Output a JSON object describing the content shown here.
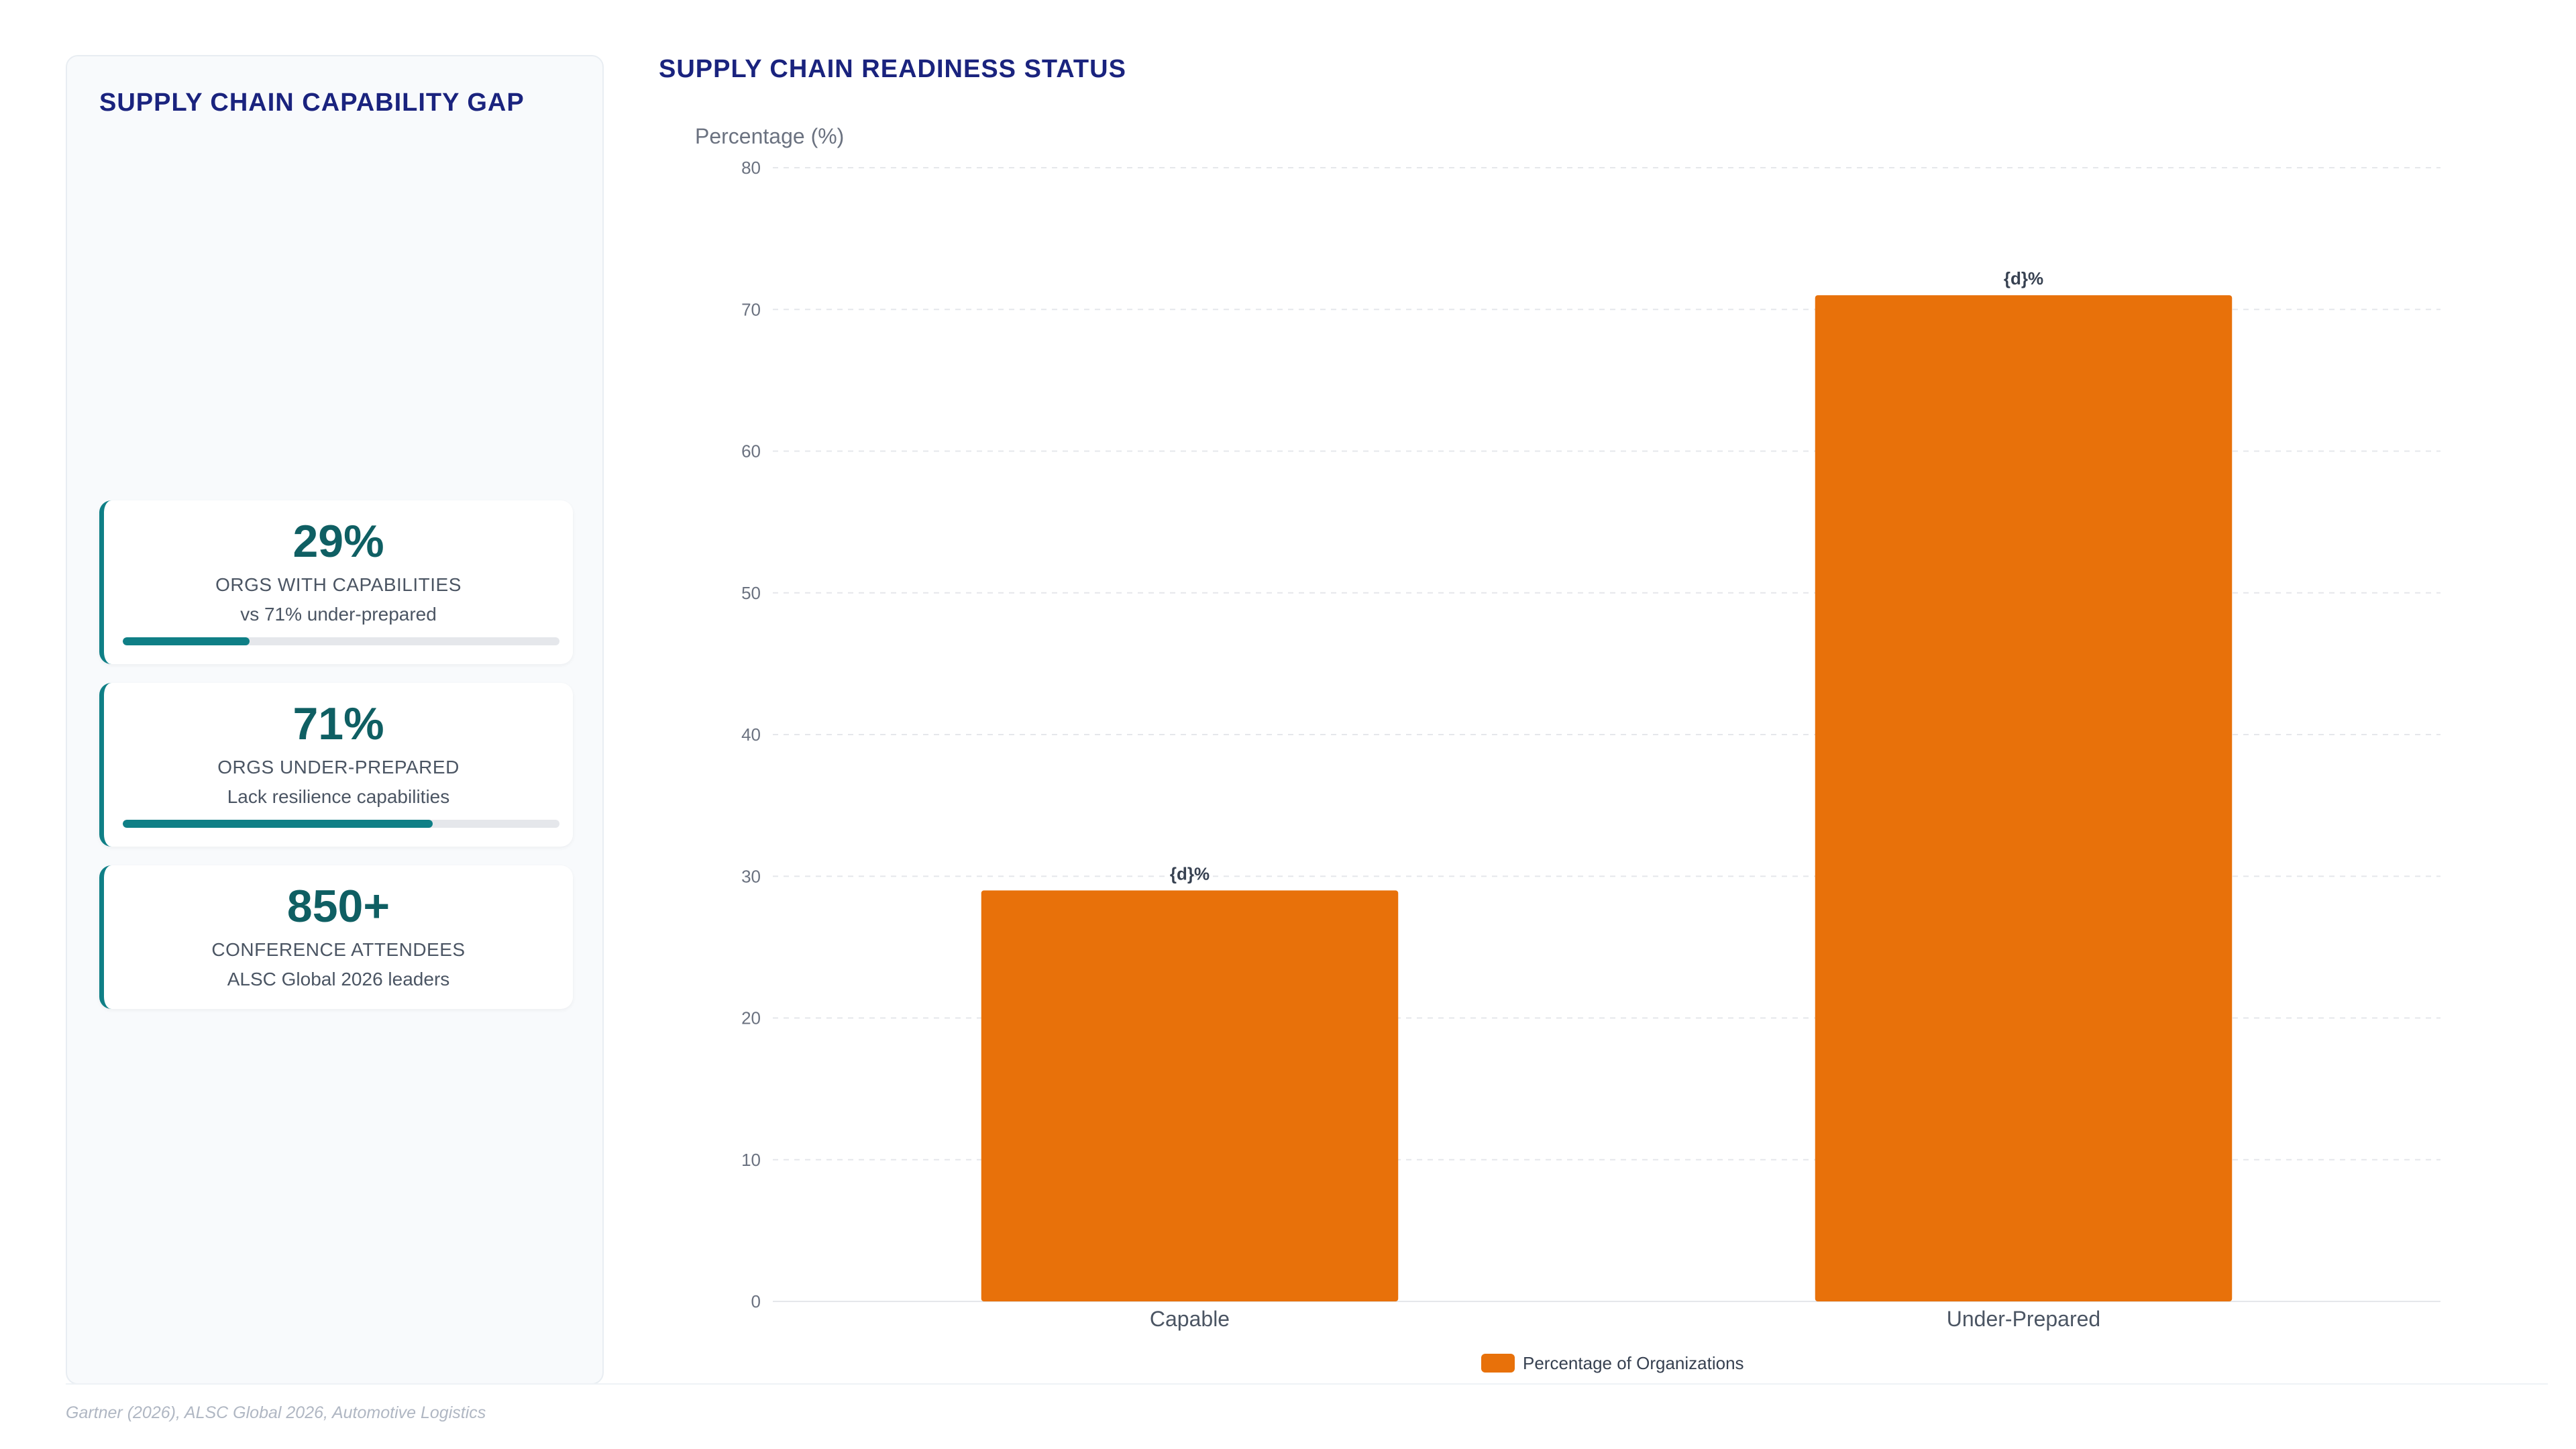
{
  "left_panel": {
    "title": "SUPPLY CHAIN CAPABILITY GAP",
    "cards": [
      {
        "value": "29%",
        "label": "ORGS WITH CAPABILITIES",
        "sub": "vs 71% under-prepared",
        "progress": 0.29
      },
      {
        "value": "71%",
        "label": "ORGS UNDER-PREPARED",
        "sub": "Lack resilience capabilities",
        "progress": 0.71
      },
      {
        "value": "850+",
        "label": "CONFERENCE ATTENDEES",
        "sub": "ALSC Global 2026 leaders"
      }
    ]
  },
  "colors": {
    "accent": "#0f7f86",
    "title": "#1a237e",
    "bar": "#e8710a"
  },
  "chart_data": {
    "type": "bar",
    "title": "SUPPLY CHAIN READINESS STATUS",
    "ylabel": "Percentage (%)",
    "xlabel": "",
    "categories": [
      "Capable",
      "Under-Prepared"
    ],
    "series": [
      {
        "name": "Percentage of Organizations",
        "values": [
          29,
          71
        ],
        "color": "#e8710a"
      }
    ],
    "data_labels": [
      "{d}%",
      "{d}%"
    ],
    "ylim": [
      0,
      80
    ],
    "yticks": [
      0,
      10,
      20,
      30,
      40,
      50,
      60,
      70,
      80
    ],
    "grid": true,
    "legend_position": "bottom-center"
  },
  "footer": {
    "source": "Gartner (2026), ALSC Global 2026, Automotive Logistics"
  }
}
